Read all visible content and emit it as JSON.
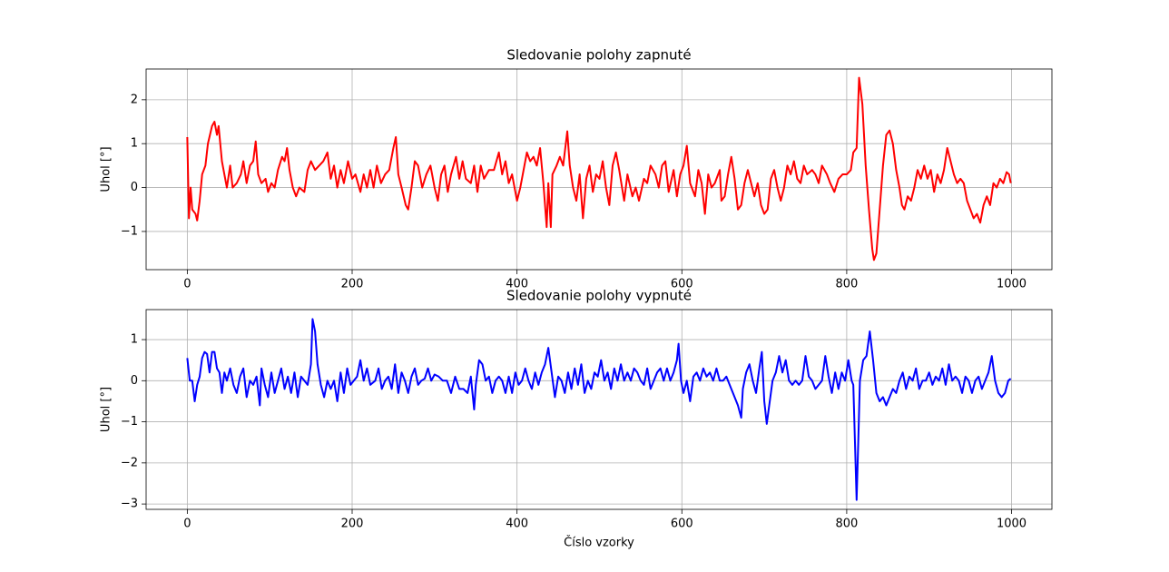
{
  "chart_data": [
    {
      "type": "line",
      "title": "Sledovanie polohy zapnuté",
      "ylabel": "Uhol [°]",
      "color": "#ff0000",
      "grid": true,
      "xlim": [
        -49.95,
        1048.95
      ],
      "ylim": [
        -1.87,
        2.7
      ],
      "xticks": [
        0,
        200,
        400,
        600,
        800,
        1000
      ],
      "yticks": [
        {
          "value": -1,
          "label": "−1"
        },
        0,
        1,
        2
      ],
      "x": [
        0,
        2,
        4,
        6,
        10,
        12,
        15,
        18,
        22,
        25,
        30,
        33,
        36,
        38,
        42,
        45,
        48,
        52,
        55,
        60,
        65,
        68,
        72,
        76,
        80,
        83,
        86,
        90,
        95,
        98,
        102,
        106,
        110,
        115,
        118,
        121,
        124,
        128,
        132,
        136,
        142,
        146,
        150,
        155,
        160,
        165,
        170,
        174,
        178,
        182,
        186,
        190,
        195,
        200,
        204,
        210,
        214,
        218,
        222,
        226,
        230,
        235,
        240,
        245,
        250,
        253,
        256,
        260,
        265,
        268,
        272,
        276,
        280,
        285,
        290,
        295,
        300,
        304,
        308,
        312,
        316,
        320,
        326,
        330,
        334,
        338,
        344,
        348,
        352,
        356,
        360,
        366,
        372,
        378,
        382,
        386,
        390,
        394,
        400,
        404,
        408,
        412,
        416,
        420,
        424,
        428,
        432,
        436,
        438,
        441,
        443,
        448,
        452,
        456,
        461,
        464,
        468,
        472,
        476,
        480,
        484,
        488,
        492,
        496,
        500,
        504,
        508,
        512,
        516,
        520,
        524,
        530,
        534,
        540,
        544,
        548,
        554,
        558,
        562,
        568,
        572,
        576,
        580,
        584,
        590,
        594,
        598,
        602,
        606,
        610,
        616,
        620,
        624,
        628,
        632,
        636,
        640,
        646,
        648,
        652,
        656,
        660,
        664,
        668,
        672,
        676,
        680,
        684,
        688,
        692,
        696,
        700,
        704,
        708,
        712,
        716,
        720,
        724,
        728,
        732,
        736,
        740,
        744,
        748,
        752,
        758,
        762,
        766,
        770,
        776,
        780,
        785,
        790,
        795,
        800,
        805,
        808,
        812,
        815,
        819,
        823,
        827,
        831,
        833,
        836,
        840,
        844,
        848,
        852,
        856,
        860,
        864,
        867,
        870,
        874,
        878,
        882,
        886,
        890,
        894,
        898,
        902,
        906,
        910,
        914,
        918,
        922,
        926,
        930,
        934,
        938,
        942,
        946,
        950,
        954,
        958,
        962,
        966,
        970,
        974,
        978,
        982,
        986,
        990,
        994,
        997,
        999
      ],
      "values": [
        1.15,
        -0.7,
        0,
        -0.5,
        -0.6,
        -0.75,
        -0.3,
        0.3,
        0.5,
        1.0,
        1.4,
        1.5,
        1.2,
        1.4,
        0.6,
        0.3,
        0,
        0.5,
        0,
        0.1,
        0.3,
        0.6,
        0.1,
        0.5,
        0.6,
        1.05,
        0.3,
        0.1,
        0.2,
        -0.1,
        0.1,
        0,
        0.4,
        0.7,
        0.6,
        0.9,
        0.4,
        0,
        -0.2,
        0,
        -0.1,
        0.4,
        0.6,
        0.4,
        0.5,
        0.6,
        0.8,
        0.2,
        0.5,
        0,
        0.4,
        0.1,
        0.6,
        0.2,
        0.3,
        -0.1,
        0.3,
        0,
        0.4,
        0,
        0.5,
        0.1,
        0.3,
        0.4,
        0.9,
        1.15,
        0.3,
        0,
        -0.4,
        -0.5,
        0,
        0.6,
        0.5,
        0,
        0.3,
        0.5,
        0,
        -0.3,
        0.3,
        0.5,
        -0.1,
        0.3,
        0.7,
        0.2,
        0.6,
        0.2,
        0.1,
        0.5,
        -0.1,
        0.5,
        0.2,
        0.4,
        0.4,
        0.8,
        0.3,
        0.6,
        0.1,
        0.3,
        -0.3,
        0,
        0.4,
        0.8,
        0.6,
        0.7,
        0.5,
        0.9,
        0.1,
        -0.9,
        0.1,
        -0.9,
        0.3,
        0.5,
        0.7,
        0.5,
        1.28,
        0.5,
        0,
        -0.3,
        0.3,
        -0.7,
        0.2,
        0.5,
        -0.1,
        0.3,
        0.2,
        0.6,
        0,
        -0.4,
        0.5,
        0.8,
        0.4,
        -0.3,
        0.3,
        -0.2,
        0,
        -0.3,
        0.2,
        0.1,
        0.5,
        0.3,
        0,
        0.5,
        0.6,
        -0.1,
        0.4,
        -0.2,
        0.3,
        0.5,
        0.95,
        0.1,
        -0.2,
        0.4,
        0.1,
        -0.6,
        0.3,
        0,
        0.1,
        0.4,
        -0.3,
        -0.2,
        0.3,
        0.7,
        0.2,
        -0.5,
        -0.4,
        0.1,
        0.4,
        0.1,
        -0.2,
        0.1,
        -0.4,
        -0.6,
        -0.5,
        0.2,
        0.4,
        0,
        -0.3,
        0,
        0.5,
        0.3,
        0.6,
        0.2,
        0.1,
        0.5,
        0.3,
        0.4,
        0.3,
        0.1,
        0.5,
        0.3,
        0.1,
        -0.1,
        0.2,
        0.3,
        0.3,
        0.4,
        0.8,
        0.9,
        2.5,
        1.9,
        0.5,
        -0.5,
        -1.4,
        -1.65,
        -1.5,
        -0.5,
        0.5,
        1.2,
        1.3,
        1.0,
        0.4,
        0,
        -0.4,
        -0.5,
        -0.2,
        -0.3,
        0,
        0.4,
        0.2,
        0.5,
        0.2,
        0.4,
        -0.1,
        0.3,
        0.1,
        0.4,
        0.9,
        0.6,
        0.3,
        0.1,
        0.2,
        0.1,
        -0.3,
        -0.5,
        -0.7,
        -0.6,
        -0.8,
        -0.4,
        -0.2,
        -0.4,
        0.1,
        0,
        0.2,
        0.1,
        0.35,
        0.3,
        0.1
      ]
    },
    {
      "type": "line",
      "title": "Sledovanie polohy vypnuté",
      "ylabel": "Uhol [°]",
      "xlabel": "Číslo vzorky",
      "color": "#0000ff",
      "grid": true,
      "xlim": [
        -49.95,
        1048.95
      ],
      "ylim": [
        -3.13,
        1.73
      ],
      "xticks": [
        0,
        200,
        400,
        600,
        800,
        1000
      ],
      "yticks": [
        {
          "value": -3,
          "label": "−3"
        },
        {
          "value": -2,
          "label": "−2"
        },
        {
          "value": -1,
          "label": "−1"
        },
        0,
        1
      ],
      "x": [
        0,
        3,
        6,
        9,
        12,
        15,
        18,
        21,
        24,
        27,
        30,
        33,
        36,
        39,
        42,
        45,
        48,
        52,
        56,
        60,
        64,
        68,
        72,
        76,
        80,
        84,
        88,
        90,
        94,
        98,
        102,
        106,
        110,
        114,
        118,
        122,
        126,
        130,
        134,
        138,
        142,
        146,
        150,
        152,
        155,
        158,
        162,
        166,
        170,
        174,
        178,
        182,
        186,
        190,
        194,
        198,
        202,
        206,
        210,
        214,
        218,
        222,
        228,
        232,
        236,
        240,
        244,
        248,
        252,
        256,
        260,
        264,
        268,
        272,
        276,
        280,
        284,
        288,
        292,
        296,
        300,
        305,
        310,
        315,
        320,
        325,
        330,
        335,
        340,
        344,
        348,
        350,
        354,
        358,
        362,
        366,
        370,
        374,
        378,
        382,
        386,
        390,
        394,
        398,
        402,
        406,
        410,
        414,
        418,
        422,
        426,
        430,
        434,
        438,
        442,
        446,
        450,
        454,
        458,
        462,
        466,
        470,
        474,
        478,
        482,
        486,
        490,
        494,
        498,
        502,
        506,
        510,
        514,
        518,
        522,
        526,
        530,
        534,
        538,
        542,
        546,
        550,
        554,
        558,
        562,
        566,
        570,
        574,
        578,
        582,
        586,
        590,
        594,
        596,
        599,
        602,
        606,
        610,
        614,
        618,
        622,
        626,
        630,
        634,
        638,
        642,
        646,
        650,
        654,
        658,
        662,
        668,
        672,
        674,
        678,
        682,
        686,
        690,
        694,
        697,
        700,
        703,
        706,
        710,
        714,
        718,
        722,
        726,
        730,
        734,
        738,
        742,
        746,
        750,
        754,
        758,
        762,
        766,
        770,
        774,
        778,
        782,
        786,
        790,
        794,
        798,
        802,
        806,
        808,
        810,
        812,
        814,
        816,
        820,
        824,
        828,
        832,
        836,
        840,
        844,
        848,
        852,
        856,
        860,
        864,
        868,
        872,
        876,
        880,
        884,
        888,
        892,
        896,
        900,
        904,
        908,
        912,
        916,
        920,
        924,
        928,
        932,
        936,
        940,
        944,
        948,
        952,
        956,
        960,
        964,
        968,
        972,
        976,
        980,
        984,
        988,
        992,
        996,
        999
      ],
      "values": [
        0.55,
        0,
        0,
        -0.5,
        -0.1,
        0.1,
        0.55,
        0.7,
        0.65,
        0.2,
        0.7,
        0.7,
        0.3,
        0.2,
        -0.3,
        0.2,
        0,
        0.3,
        -0.1,
        -0.3,
        0.1,
        0.3,
        -0.4,
        0,
        -0.1,
        0.1,
        -0.6,
        0.3,
        -0.1,
        -0.4,
        0.2,
        -0.3,
        0,
        0.3,
        -0.2,
        0.1,
        -0.3,
        0.2,
        -0.4,
        0.1,
        0,
        -0.1,
        0.4,
        1.5,
        1.2,
        0.4,
        -0.1,
        -0.4,
        0,
        -0.2,
        0,
        -0.5,
        0.2,
        -0.3,
        0.3,
        -0.1,
        0,
        0.1,
        0.5,
        0,
        0.3,
        -0.1,
        0,
        0.3,
        -0.2,
        0,
        0.1,
        -0.2,
        0.4,
        -0.3,
        0.2,
        0,
        -0.3,
        0.1,
        0.3,
        -0.1,
        0,
        0.05,
        0.3,
        0,
        0.15,
        0.1,
        0,
        0,
        -0.3,
        0.1,
        -0.2,
        -0.2,
        -0.3,
        0.1,
        -0.7,
        -0.1,
        0.5,
        0.4,
        0,
        0.1,
        -0.3,
        0,
        0.1,
        0,
        -0.3,
        0.1,
        -0.3,
        0.2,
        -0.1,
        0,
        0.3,
        0,
        -0.2,
        0.2,
        -0.1,
        0.2,
        0.4,
        0.8,
        0.2,
        -0.4,
        0.1,
        0,
        -0.3,
        0.2,
        -0.2,
        0.3,
        -0.1,
        0.4,
        -0.3,
        0,
        -0.2,
        0.2,
        0.1,
        0.5,
        0,
        0.2,
        -0.2,
        0.3,
        0,
        0.4,
        0,
        0.2,
        0,
        0.3,
        0.2,
        0,
        -0.1,
        0.3,
        -0.2,
        0,
        0.2,
        0.3,
        0,
        0.3,
        0,
        0.2,
        0.5,
        0.9,
        0,
        -0.3,
        0,
        -0.5,
        0.1,
        0.2,
        0,
        0.3,
        0.1,
        0.2,
        0,
        0.3,
        0,
        0,
        0.1,
        -0.1,
        -0.3,
        -0.6,
        -0.9,
        -0.2,
        0.2,
        0.4,
        0,
        -0.3,
        0.3,
        0.7,
        -0.5,
        -1.05,
        -0.6,
        0,
        0.2,
        0.6,
        0.2,
        0.5,
        0,
        -0.1,
        0,
        -0.1,
        0,
        0.6,
        0.1,
        0,
        -0.2,
        -0.1,
        0,
        0.6,
        0.1,
        -0.3,
        0.2,
        -0.2,
        0.2,
        0,
        0.5,
        0,
        -0.1,
        -1.5,
        -2.9,
        -1.5,
        0,
        0.5,
        0.6,
        1.2,
        0.5,
        -0.3,
        -0.5,
        -0.4,
        -0.6,
        -0.4,
        -0.2,
        -0.3,
        0,
        0.2,
        -0.2,
        0.1,
        0,
        0.3,
        -0.2,
        0,
        0,
        0.2,
        -0.1,
        0.1,
        0,
        0.3,
        -0.1,
        0.4,
        0,
        0.1,
        0,
        -0.3,
        0.1,
        0,
        -0.3,
        0,
        0.1,
        -0.2,
        0,
        0.2,
        0.6,
        0,
        -0.3,
        -0.4,
        -0.3,
        0,
        0.05
      ]
    }
  ]
}
